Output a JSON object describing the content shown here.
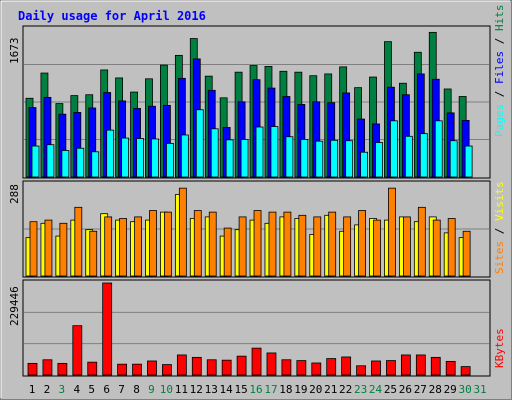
{
  "chart_data": [
    {
      "type": "bar",
      "title": "Daily usage for April 2016",
      "panel": "hits-files-pages",
      "ymax_label": "1673",
      "ylim": [
        0,
        1673
      ],
      "right_labels": [
        "Pages",
        "Files",
        "Hits"
      ],
      "categories": [
        "1",
        "2",
        "3",
        "4",
        "5",
        "6",
        "7",
        "8",
        "9",
        "10",
        "11",
        "12",
        "13",
        "14",
        "15",
        "16",
        "17",
        "18",
        "19",
        "20",
        "21",
        "22",
        "23",
        "24",
        "25",
        "26",
        "27",
        "28",
        "29",
        "30",
        "31"
      ],
      "series": [
        {
          "name": "Hits",
          "color": "#008040",
          "values": [
            890,
            1175,
            830,
            920,
            930,
            1210,
            1120,
            960,
            1110,
            1265,
            1375,
            1565,
            1140,
            895,
            1185,
            1260,
            1250,
            1195,
            1185,
            1145,
            1165,
            1245,
            1010,
            1130,
            1530,
            1060,
            1410,
            1635,
            995,
            910,
            0
          ]
        },
        {
          "name": "Files",
          "color": "#0000ff",
          "values": [
            785,
            900,
            710,
            730,
            780,
            955,
            860,
            775,
            800,
            810,
            1115,
            1335,
            980,
            560,
            850,
            1100,
            1005,
            910,
            820,
            850,
            840,
            950,
            655,
            600,
            1015,
            930,
            1165,
            1105,
            725,
            640,
            0
          ]
        },
        {
          "name": "Pages",
          "color": "#00ffff",
          "values": [
            350,
            365,
            300,
            325,
            285,
            530,
            440,
            435,
            430,
            380,
            475,
            760,
            545,
            420,
            425,
            565,
            570,
            455,
            425,
            405,
            415,
            410,
            280,
            390,
            635,
            460,
            490,
            635,
            410,
            350,
            0
          ]
        }
      ]
    },
    {
      "type": "bar",
      "panel": "visits-sites",
      "ymax_label": "288",
      "ylim": [
        0,
        288
      ],
      "right_labels": [
        "Sites",
        "Visits"
      ],
      "categories": [
        "1",
        "2",
        "3",
        "4",
        "5",
        "6",
        "7",
        "8",
        "9",
        "10",
        "11",
        "12",
        "13",
        "14",
        "15",
        "16",
        "17",
        "18",
        "19",
        "20",
        "21",
        "22",
        "23",
        "24",
        "25",
        "26",
        "27",
        "28",
        "29",
        "30",
        "31"
      ],
      "series": [
        {
          "name": "Visits",
          "color": "#ffff00",
          "values": [
            120,
            165,
            125,
            175,
            145,
            195,
            175,
            170,
            175,
            200,
            255,
            180,
            185,
            125,
            145,
            175,
            165,
            185,
            180,
            130,
            190,
            140,
            160,
            180,
            175,
            185,
            170,
            185,
            135,
            120,
            0
          ]
        },
        {
          "name": "Sites",
          "color": "#ff8000",
          "values": [
            170,
            175,
            165,
            215,
            140,
            185,
            180,
            185,
            205,
            200,
            275,
            205,
            200,
            150,
            185,
            205,
            200,
            200,
            190,
            185,
            200,
            185,
            205,
            175,
            275,
            185,
            215,
            175,
            180,
            140,
            0
          ]
        }
      ]
    },
    {
      "type": "bar",
      "panel": "kbytes",
      "ymax_label": "229446",
      "ylim": [
        0,
        229446
      ],
      "right_labels": [
        "KBytes"
      ],
      "categories": [
        "1",
        "2",
        "3",
        "4",
        "5",
        "6",
        "7",
        "8",
        "9",
        "10",
        "11",
        "12",
        "13",
        "14",
        "15",
        "16",
        "17",
        "18",
        "19",
        "20",
        "21",
        "22",
        "23",
        "24",
        "25",
        "26",
        "27",
        "28",
        "29",
        "30",
        "31"
      ],
      "series": [
        {
          "name": "KBytes",
          "color": "#ff0000",
          "values": [
            29000,
            38000,
            29000,
            123000,
            32000,
            229446,
            27000,
            27000,
            35000,
            26000,
            50000,
            44000,
            38000,
            37000,
            47000,
            67000,
            55000,
            38000,
            36000,
            30000,
            41000,
            45000,
            23000,
            35000,
            36000,
            50000,
            50000,
            44000,
            34000,
            21000,
            0
          ]
        }
      ]
    }
  ],
  "weekend_days": [
    3,
    9,
    10,
    16,
    17,
    23,
    24,
    30,
    31
  ],
  "colors": {
    "background": "#c0c0c0",
    "title": "#0000ff",
    "weekday_label": "#000000",
    "weekend_label": "#008040",
    "gridline": "#808080"
  }
}
